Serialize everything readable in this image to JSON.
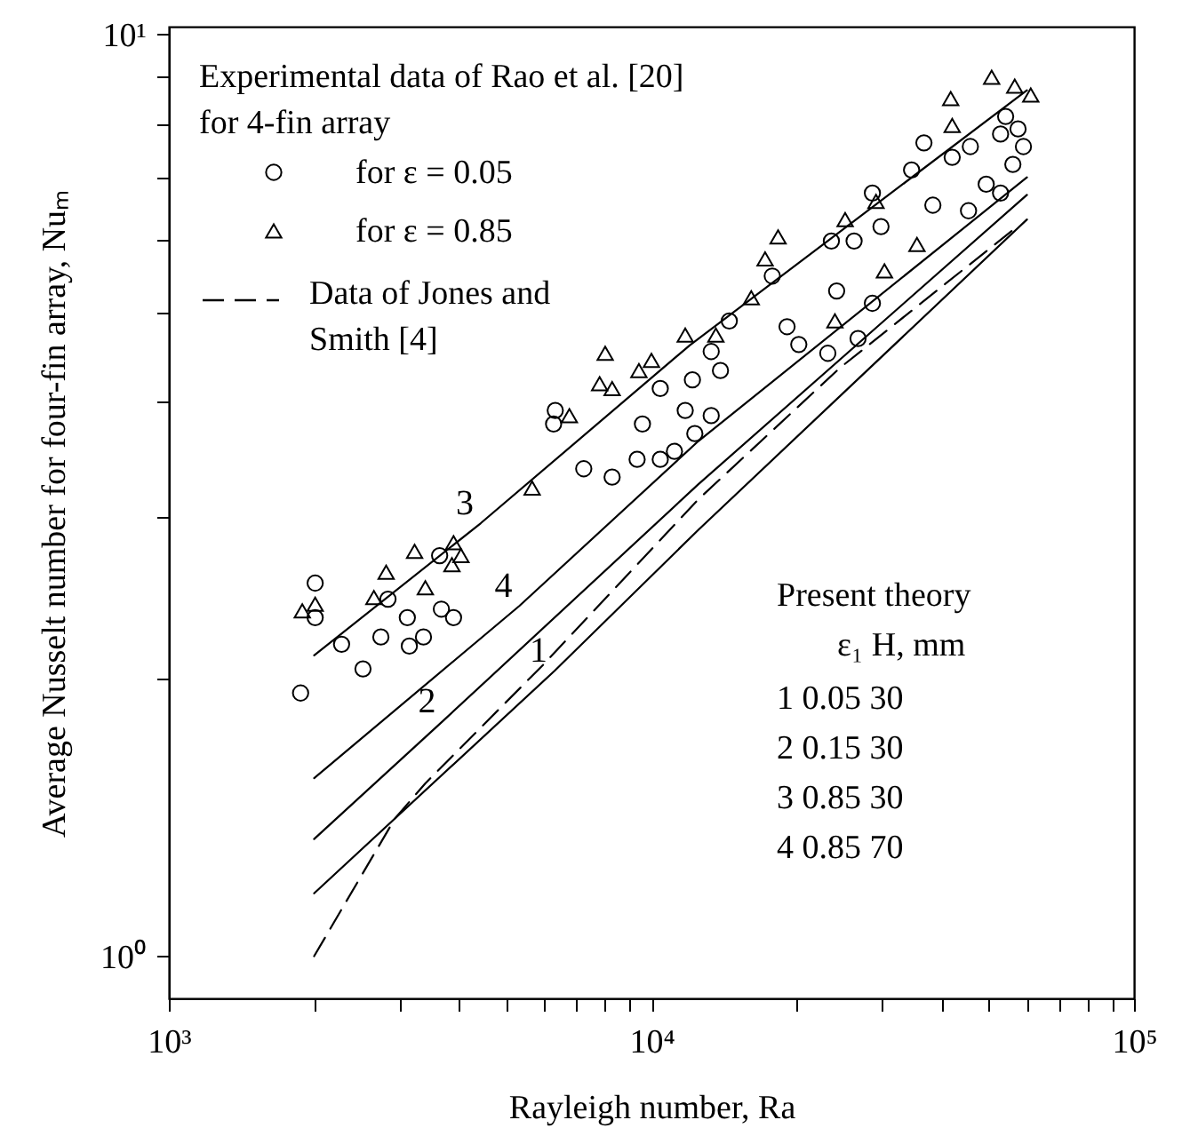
{
  "chart_data": {
    "type": "line",
    "xlabel": "Rayleigh number, Ra",
    "ylabel": "Average Nusselt number for four-fin array, Nuₘ",
    "legend_title": "Experimental data of Rao et al. [20] for 4-fin array",
    "legend": "top left",
    "log": "xy",
    "xlim": [
      1000,
      100000
    ],
    "ylim": [
      0.9,
      10.2
    ],
    "xticks": [
      {
        "value": 1000,
        "label": "10³"
      },
      {
        "value": 2000,
        "label": null
      },
      {
        "value": 3000,
        "label": null
      },
      {
        "value": 4000,
        "label": null
      },
      {
        "value": 5000,
        "label": null
      },
      {
        "value": 6000,
        "label": null
      },
      {
        "value": 7000,
        "label": null
      },
      {
        "value": 8000,
        "label": null
      },
      {
        "value": 9000,
        "label": null
      },
      {
        "value": 10000,
        "label": "10⁴"
      },
      {
        "value": 20000,
        "label": null
      },
      {
        "value": 30000,
        "label": null
      },
      {
        "value": 40000,
        "label": null
      },
      {
        "value": 50000,
        "label": null
      },
      {
        "value": 60000,
        "label": null
      },
      {
        "value": 70000,
        "label": null
      },
      {
        "value": 80000,
        "label": null
      },
      {
        "value": 90000,
        "label": null
      },
      {
        "value": 100000,
        "label": "10⁵"
      }
    ],
    "yticks": [
      {
        "value": 1,
        "label": "10⁰"
      },
      {
        "value": 2,
        "label": null
      },
      {
        "value": 3,
        "label": null
      },
      {
        "value": 4,
        "label": null
      },
      {
        "value": 5,
        "label": null
      },
      {
        "value": 6,
        "label": null
      },
      {
        "value": 7,
        "label": null
      },
      {
        "value": 8,
        "label": null
      },
      {
        "value": 9,
        "label": null
      },
      {
        "value": 10,
        "label": "10¹"
      }
    ],
    "annotations": [
      "Present theory",
      "ε₁ H, mm",
      "1 0.05 30",
      "2 0.15 30",
      "3 0.85 30",
      "4 0.85 70"
    ],
    "series": [
      {
        "name": "for ε = 0.05",
        "type": "scatter",
        "marker": "circle",
        "color": "#000000",
        "x": [
          2010,
          2010,
          1875,
          2280,
          2525,
          2750,
          2845,
          3120,
          3150,
          3370,
          3670,
          3890,
          3640,
          7240,
          8290,
          9340,
          10430,
          11160,
          6320,
          6270,
          9580,
          10430,
          11750,
          12160,
          54200,
          57500,
          52900,
          59000,
          56100,
          49400,
          52900,
          45400,
          42000,
          45800,
          36700,
          34600,
          28700,
          38300,
          29900,
          26300,
          23600,
          17800,
          24200,
          28700,
          19100,
          20200,
          23200,
          26800,
          14500,
          13900,
          13300,
          13300,
          12300
        ],
        "values": [
          2.54,
          2.33,
          1.93,
          2.18,
          2.05,
          2.22,
          2.44,
          2.33,
          2.17,
          2.22,
          2.38,
          2.33,
          2.72,
          3.38,
          3.31,
          3.46,
          3.46,
          3.53,
          3.91,
          3.78,
          3.78,
          4.13,
          3.91,
          4.22,
          8.15,
          7.9,
          7.8,
          7.56,
          7.23,
          6.88,
          6.73,
          6.44,
          7.36,
          7.56,
          7.63,
          7.13,
          6.73,
          6.53,
          6.19,
          5.97,
          5.97,
          5.47,
          5.27,
          5.11,
          4.82,
          4.61,
          4.51,
          4.68,
          4.89,
          4.32,
          4.53,
          3.86,
          3.69
        ]
      },
      {
        "name": "for ε = 0.85",
        "type": "scatter",
        "marker": "triangle",
        "color": "#000000",
        "x": [
          1890,
          2010,
          2820,
          2660,
          3230,
          3400,
          3890,
          4030,
          3860,
          5660,
          8020,
          7810,
          8290,
          9420,
          10000,
          11750,
          6760,
          50700,
          56600,
          61100,
          41700,
          42000,
          29200,
          25200,
          18300,
          17200,
          16100,
          13600,
          30400,
          35500,
          24000
        ],
        "values": [
          2.37,
          2.41,
          2.61,
          2.45,
          2.75,
          2.51,
          2.81,
          2.72,
          2.66,
          3.22,
          4.51,
          4.18,
          4.13,
          4.32,
          4.43,
          4.72,
          3.86,
          8.99,
          8.79,
          8.6,
          8.52,
          7.97,
          6.59,
          6.3,
          6.03,
          5.71,
          5.18,
          4.72,
          5.54,
          5.92,
          4.89
        ]
      },
      {
        "name": "Data of Jones and Smith [4]",
        "line_style": "dashed",
        "color": "#000000",
        "x": [
          2000,
          2940,
          3400,
          5960,
          12500,
          24600,
          57500
        ],
        "values": [
          1.0,
          1.41,
          1.54,
          2.07,
          3.13,
          4.35,
          6.2
        ]
      },
      {
        "name": "1",
        "line_style": "solid",
        "color": "#000000",
        "x": [
          2000,
          6300,
          12500,
          60000
        ],
        "values": [
          1.17,
          2.04,
          2.9,
          6.3
        ]
      },
      {
        "name": "2",
        "line_style": "solid",
        "color": "#000000",
        "x": [
          2000,
          3700,
          12500,
          60000
        ],
        "values": [
          1.34,
          1.8,
          3.25,
          6.7
        ]
      },
      {
        "name": "3",
        "line_style": "solid",
        "color": "#000000",
        "x": [
          2000,
          4430,
          12000,
          60000
        ],
        "values": [
          2.12,
          2.95,
          4.6,
          8.7
        ]
      },
      {
        "name": "4",
        "line_style": "solid",
        "color": "#000000",
        "x": [
          2000,
          5330,
          12500,
          60000
        ],
        "values": [
          1.56,
          2.4,
          3.62,
          7.0
        ]
      }
    ]
  }
}
